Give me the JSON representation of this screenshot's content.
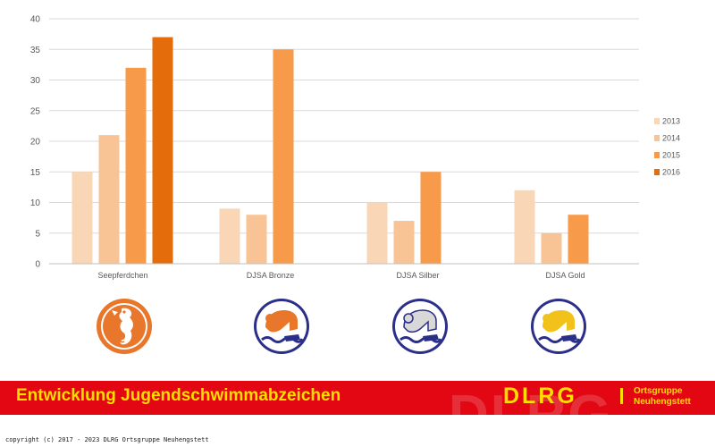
{
  "chart_data": {
    "type": "bar",
    "categories": [
      "Seepferdchen",
      "DJSA Bronze",
      "DJSA Silber",
      "DJSA Gold"
    ],
    "series": [
      {
        "name": "2013",
        "color": "#f9d6b5",
        "values": [
          15,
          9,
          10,
          12
        ]
      },
      {
        "name": "2014",
        "color": "#f8c496",
        "values": [
          21,
          8,
          7,
          5
        ]
      },
      {
        "name": "2015",
        "color": "#f79a4a",
        "values": [
          32,
          35,
          15,
          8
        ]
      },
      {
        "name": "2016",
        "color": "#e46c0a",
        "values": [
          37,
          null,
          null,
          null
        ]
      }
    ],
    "ylim": [
      0,
      40
    ],
    "yticks": [
      "0",
      "5",
      "10",
      "15",
      "20",
      "25",
      "30",
      "35",
      "40"
    ],
    "grid": true,
    "legend_position": "right",
    "title": "",
    "xlabel": "",
    "ylabel": ""
  },
  "badges": [
    {
      "icon": "seahorse-badge-icon",
      "color": "#e8772b"
    },
    {
      "icon": "swimmer-bronze-badge-icon",
      "color": "#e8772b"
    },
    {
      "icon": "swimmer-silver-badge-icon",
      "color": "#d8d8d8"
    },
    {
      "icon": "swimmer-gold-badge-icon",
      "color": "#f2c21a"
    }
  ],
  "banner": {
    "title": "Entwicklung Jugendschwimmabzeichen",
    "logo": "DLRG",
    "ghost": "DLRG",
    "ortsgruppe_line1": "Ortsgruppe",
    "ortsgruppe_line2": "Neuhengstett",
    "background": "#e30613",
    "text_color": "#ffdd00"
  },
  "copyright": "copyright (c) 2017 - 2023 DLRG Ortsgruppe Neuhengstett"
}
